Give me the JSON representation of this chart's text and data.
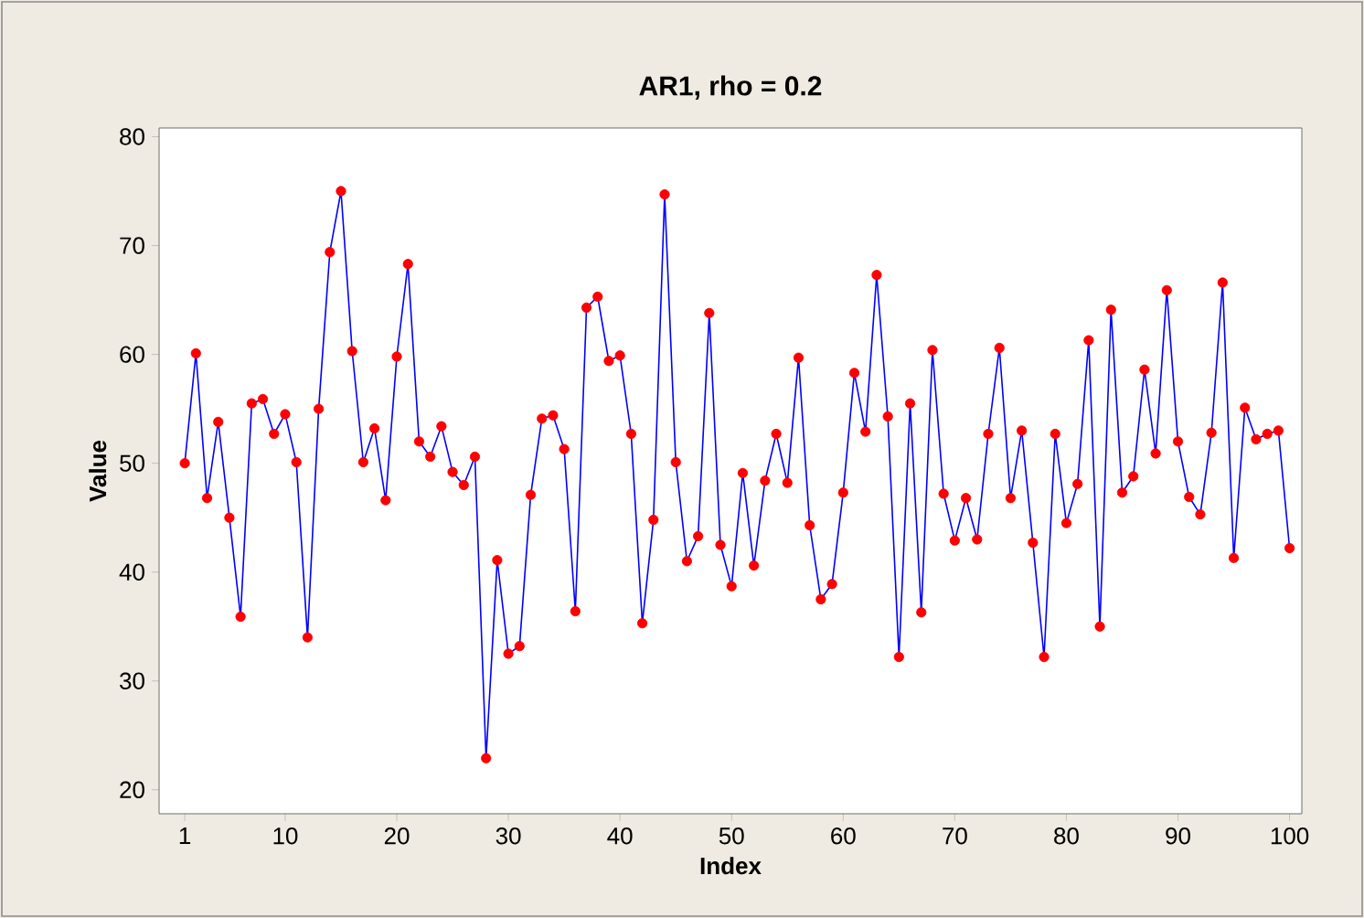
{
  "chart_data": {
    "type": "line",
    "title": "AR1, rho = 0.2",
    "xlabel": "Index",
    "ylabel": "Value",
    "x": [
      1,
      2,
      3,
      4,
      5,
      6,
      7,
      8,
      9,
      10,
      11,
      12,
      13,
      14,
      15,
      16,
      17,
      18,
      19,
      20,
      21,
      22,
      23,
      24,
      25,
      26,
      27,
      28,
      29,
      30,
      31,
      32,
      33,
      34,
      35,
      36,
      37,
      38,
      39,
      40,
      41,
      42,
      43,
      44,
      45,
      46,
      47,
      48,
      49,
      50,
      51,
      52,
      53,
      54,
      55,
      56,
      57,
      58,
      59,
      60,
      61,
      62,
      63,
      64,
      65,
      66,
      67,
      68,
      69,
      70,
      71,
      72,
      73,
      74,
      75,
      76,
      77,
      78,
      79,
      80,
      81,
      82,
      83,
      84,
      85,
      86,
      87,
      88,
      89,
      90,
      91,
      92,
      93,
      94,
      95,
      96,
      97,
      98,
      99,
      100
    ],
    "series": [
      {
        "color": "#0000ff",
        "colors": [
          "#ff0000",
          "#ff0000",
          "#ff0000",
          "#ff0000",
          "#ff0000",
          "#ff0000",
          "#ff0000",
          "#ff0000",
          "#ff0000",
          "#ff0000",
          "#ff0000",
          "#ff0000",
          "#ff0000",
          "#ff0000",
          "#ff0000",
          "#ff0000",
          "#ff0000",
          "#ff0000",
          "#ff0000",
          "#ff0000",
          "#ff0000",
          "#ff0000",
          "#ff0000",
          "#ff0000",
          "#ff0000",
          "#ff0000",
          "#ff0000",
          "#ff0000",
          "#ff0000",
          "#ff0000",
          "#ff0000",
          "#ff0000",
          "#ff0000",
          "#ff0000",
          "#ff0000",
          "#ff0000",
          "#ff0000",
          "#ff0000",
          "#ff0000",
          "#ff0000",
          "#ff0000",
          "#ff0000",
          "#ff0000",
          "#ff0000",
          "#ff0000",
          "#ff0000",
          "#ff0000",
          "#ff0000",
          "#ff0000",
          "#ff0000",
          "#ff0000",
          "#ff0000",
          "#ff0000",
          "#ff0000",
          "#ff0000",
          "#ff0000",
          "#ff0000",
          "#ff0000",
          "#ff0000",
          "#ff0000",
          "#ff0000",
          "#ff0000",
          "#ff0000",
          "#ff0000",
          "#ff0000",
          "#ff0000",
          "#ff0000",
          "#ff0000",
          "#ff0000",
          "#ff0000",
          "#ff0000",
          "#ff0000",
          "#ff0000",
          "#ff0000",
          "#ff0000",
          "#ff0000",
          "#ff0000",
          "#ff0000",
          "#ff0000",
          "#ff0000",
          "#ff0000",
          "#ff0000",
          "#ff0000",
          "#ff0000",
          "#ff0000",
          "#ff0000",
          "#ff0000",
          "#ff0000",
          "#ff0000",
          "#ff0000",
          "#ff0000",
          "#ff0000",
          "#ff0000",
          "#ff0000",
          "#ff0000",
          "#ff0000",
          "#ff0000",
          "#ff0000",
          "#ff0000",
          "#ff0000"
        ],
        "values": [
          50,
          60.1,
          46.8,
          53.8,
          45,
          35.9,
          55.5,
          55.9,
          52.7,
          54.5,
          50.1,
          34,
          55,
          69.4,
          75,
          60.3,
          50.1,
          53.2,
          46.6,
          59.8,
          68.3,
          52,
          50.6,
          53.4,
          49.2,
          48,
          50.6,
          22.9,
          41.1,
          32.5,
          33.2,
          47.1,
          54.1,
          54.4,
          51.3,
          36.4,
          64.3,
          65.3,
          59.4,
          59.9,
          52.7,
          35.3,
          44.8,
          74.7,
          50.1,
          41,
          43.3,
          63.8,
          42.5,
          38.7,
          49.1,
          40.6,
          48.4,
          52.7,
          48.2,
          59.7,
          44.3,
          37.5,
          38.9,
          47.3,
          58.3,
          52.9,
          67.3,
          54.3,
          32.2,
          55.5,
          36.3,
          60.4,
          47.2,
          42.9,
          46.8,
          43,
          52.7,
          60.6,
          46.8,
          53,
          42.7,
          32.2,
          52.7,
          44.5,
          48.1,
          61.3,
          35,
          64.1,
          47.3,
          48.8,
          58.6,
          50.9,
          65.9,
          52,
          46.9,
          45.3,
          52.8,
          66.6,
          41.3,
          55.1,
          52.2,
          52.7,
          53,
          42.2
        ]
      }
    ],
    "marker": "circle",
    "line_style": "solid",
    "xlim": [
      -1.3,
      101.1
    ],
    "ylim": [
      17.8,
      80.8
    ],
    "xticks": [
      1,
      10,
      20,
      30,
      40,
      50,
      60,
      70,
      80,
      90,
      100
    ],
    "yticks": [
      20,
      30,
      40,
      50,
      60,
      70,
      80
    ]
  }
}
